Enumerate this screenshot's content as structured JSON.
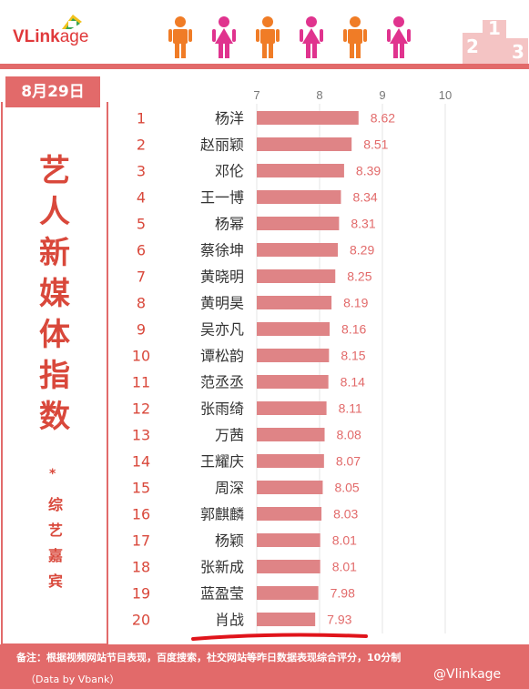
{
  "brand": {
    "logo_v": "VLink",
    "logo_rest": "age",
    "watermark": "@Vlinkage"
  },
  "header": {
    "date": "8月29日"
  },
  "title": {
    "chars": [
      "艺",
      "人",
      "新",
      "媒",
      "体",
      "指",
      "数"
    ],
    "star": "*",
    "sub_chars": [
      "综",
      "艺",
      "嘉",
      "宾"
    ]
  },
  "footer": {
    "note": "备注：根据视频网站节目表现，百度搜索，社交网站等昨日数据表现综合评分，10分制",
    "source": "（Data by Vbank）"
  },
  "podium_labels": [
    "2",
    "1",
    "3"
  ],
  "colors": {
    "bar": "#df8486",
    "accent": "#e26a6a",
    "title": "#d9483b",
    "rank": "#d9483b",
    "value": "#e26a6a",
    "person_orange": "#f07c26",
    "person_pink": "#e0338e"
  },
  "icons": [
    "person-icon",
    "person-icon",
    "person-icon",
    "person-icon",
    "person-icon",
    "person-icon"
  ],
  "chart_data": {
    "type": "bar",
    "orientation": "horizontal",
    "xlim": [
      7,
      10
    ],
    "xticks": [
      7,
      8,
      9,
      10
    ],
    "grid": true,
    "ranks": [
      1,
      2,
      3,
      4,
      5,
      6,
      7,
      8,
      9,
      10,
      11,
      12,
      13,
      14,
      15,
      16,
      17,
      18,
      19,
      20
    ],
    "categories": [
      "杨洋",
      "赵丽颖",
      "邓伦",
      "王一博",
      "杨幂",
      "蔡徐坤",
      "黄晓明",
      "黄明昊",
      "吴亦凡",
      "谭松韵",
      "范丞丞",
      "张雨绮",
      "万茜",
      "王耀庆",
      "周深",
      "郭麒麟",
      "杨颖",
      "张新成",
      "蓝盈莹",
      "肖战"
    ],
    "values": [
      8.62,
      8.51,
      8.39,
      8.34,
      8.31,
      8.29,
      8.25,
      8.19,
      8.16,
      8.15,
      8.14,
      8.11,
      8.08,
      8.07,
      8.05,
      8.03,
      8.01,
      8.01,
      7.98,
      7.93
    ],
    "value_labels": [
      "8.62",
      "8.51",
      "8.39",
      "8.34",
      "8.31",
      "8.29",
      "8.25",
      "8.19",
      "8.16",
      "8.15",
      "8.14",
      "8.11",
      "8.08",
      "8.07",
      "8.05",
      "8.03",
      "8.01",
      "8.01",
      "7.98",
      "7.93"
    ]
  }
}
